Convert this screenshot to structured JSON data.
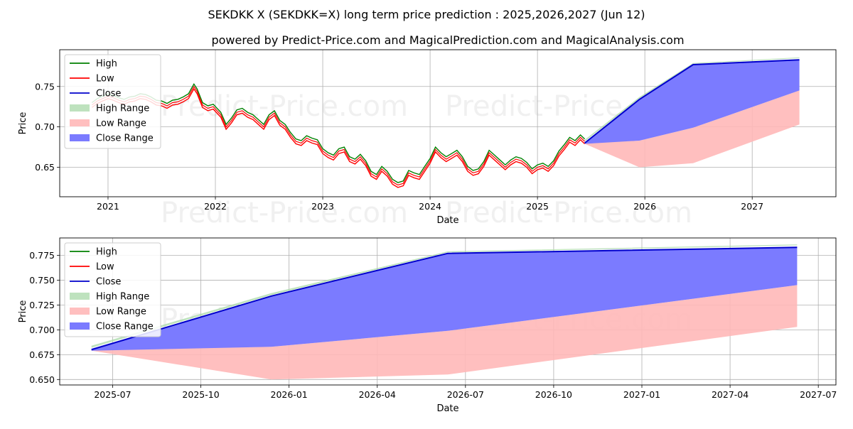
{
  "title": "SEKDKK X (SEKDKK=X) long term price prediction : 2025,2026,2027 (Jun 12)",
  "subtitle": "powered by Predict-Price.com and MagicalPrediction.com and MagicalAnalysis.com",
  "watermark": "Predict-Price.com",
  "colors": {
    "high": "#008000",
    "low": "#ff0000",
    "close": "#0000cc",
    "high_range": "#a8d8a8",
    "low_range": "#ffb8b8",
    "close_range": "#7b7bff"
  },
  "chart_data": [
    {
      "type": "line",
      "name": "history-and-forecast",
      "xlabel": "Date",
      "ylabel": "Price",
      "xlim": [
        2020.55,
        2027.78
      ],
      "ylim": [
        0.6135,
        0.7955
      ],
      "yticks": [
        0.65,
        0.7,
        0.75
      ],
      "ytick_labels": [
        "0.65",
        "0.70",
        "0.75"
      ],
      "xticks": [
        2021,
        2022,
        2023,
        2024,
        2025,
        2026,
        2027
      ],
      "xtick_labels": [
        "2021",
        "2022",
        "2023",
        "2024",
        "2025",
        "2026",
        "2027"
      ],
      "legend_position": "top-left",
      "legend": [
        "High",
        "Low",
        "Close",
        "High Range",
        "Low Range",
        "Close Range"
      ],
      "grid": true,
      "history_x": [
        2020.85,
        2020.9,
        2020.95,
        2021.0,
        2021.05,
        2021.1,
        2021.15,
        2021.2,
        2021.25,
        2021.3,
        2021.35,
        2021.4,
        2021.45,
        2021.5,
        2021.55,
        2021.6,
        2021.65,
        2021.7,
        2021.75,
        2021.8,
        2021.83,
        2021.88,
        2021.93,
        2021.98,
        2022.05,
        2022.1,
        2022.15,
        2022.2,
        2022.25,
        2022.3,
        2022.35,
        2022.4,
        2022.45,
        2022.5,
        2022.55,
        2022.6,
        2022.65,
        2022.7,
        2022.75,
        2022.8,
        2022.85,
        2022.9,
        2022.95,
        2023.0,
        2023.05,
        2023.1,
        2023.15,
        2023.2,
        2023.25,
        2023.3,
        2023.35,
        2023.4,
        2023.45,
        2023.5,
        2023.55,
        2023.6,
        2023.65,
        2023.7,
        2023.75,
        2023.8,
        2023.85,
        2023.9,
        2023.95,
        2024.0,
        2024.05,
        2024.1,
        2024.15,
        2024.2,
        2024.25,
        2024.3,
        2024.35,
        2024.4,
        2024.45,
        2024.5,
        2024.55,
        2024.6,
        2024.65,
        2024.7,
        2024.75,
        2024.8,
        2024.85,
        2024.9,
        2024.95,
        2025.0,
        2025.05,
        2025.1,
        2025.15,
        2025.2,
        2025.25,
        2025.3,
        2025.35,
        2025.4,
        2025.44
      ],
      "history_close": [
        0.727,
        0.732,
        0.735,
        0.738,
        0.736,
        0.733,
        0.731,
        0.734,
        0.735,
        0.738,
        0.737,
        0.734,
        0.73,
        0.729,
        0.726,
        0.73,
        0.731,
        0.734,
        0.738,
        0.75,
        0.744,
        0.727,
        0.723,
        0.725,
        0.715,
        0.7,
        0.708,
        0.718,
        0.72,
        0.715,
        0.712,
        0.706,
        0.7,
        0.712,
        0.717,
        0.705,
        0.7,
        0.69,
        0.682,
        0.68,
        0.686,
        0.683,
        0.681,
        0.67,
        0.665,
        0.662,
        0.67,
        0.672,
        0.66,
        0.657,
        0.663,
        0.655,
        0.642,
        0.638,
        0.648,
        0.642,
        0.632,
        0.628,
        0.63,
        0.643,
        0.64,
        0.638,
        0.648,
        0.658,
        0.672,
        0.665,
        0.66,
        0.664,
        0.668,
        0.66,
        0.648,
        0.643,
        0.645,
        0.654,
        0.668,
        0.662,
        0.656,
        0.65,
        0.656,
        0.66,
        0.658,
        0.653,
        0.645,
        0.65,
        0.652,
        0.648,
        0.655,
        0.667,
        0.675,
        0.684,
        0.68,
        0.687,
        0.682
      ],
      "history_high_offset": 0.003,
      "history_low_offset": -0.003,
      "forecast_x": [
        2025.44,
        2025.95,
        2026.45,
        2027.44
      ],
      "forecast_close": [
        0.68,
        0.734,
        0.777,
        0.783
      ],
      "forecast_high_range": [
        [
          0.682,
          0.684
        ],
        [
          0.735,
          0.737
        ],
        [
          0.778,
          0.779
        ],
        [
          0.785,
          0.786
        ]
      ],
      "forecast_low_range": [
        [
          0.679,
          0.68
        ],
        [
          0.65,
          0.683
        ],
        [
          0.655,
          0.699
        ],
        [
          0.703,
          0.745
        ]
      ],
      "forecast_close_range": [
        [
          0.679,
          0.681
        ],
        [
          0.683,
          0.734
        ],
        [
          0.699,
          0.777
        ],
        [
          0.745,
          0.783
        ]
      ]
    },
    {
      "type": "area",
      "name": "forecast-zoom",
      "xlabel": "Date",
      "ylabel": "Price",
      "xlim": [
        2025.35,
        2027.55
      ],
      "ylim": [
        0.6445,
        0.7925
      ],
      "yticks": [
        0.65,
        0.675,
        0.7,
        0.725,
        0.75,
        0.775
      ],
      "ytick_labels": [
        "0.650",
        "0.675",
        "0.700",
        "0.725",
        "0.750",
        "0.775"
      ],
      "xticks": [
        2025.5,
        2025.75,
        2026.0,
        2026.25,
        2026.5,
        2026.75,
        2027.0,
        2027.25,
        2027.5
      ],
      "xtick_labels": [
        "2025-07",
        "2025-10",
        "2026-01",
        "2026-04",
        "2026-07",
        "2026-10",
        "2027-01",
        "2027-04",
        "2027-07"
      ],
      "legend_position": "top-left",
      "legend": [
        "High",
        "Low",
        "Close",
        "High Range",
        "Low Range",
        "Close Range"
      ],
      "grid": true,
      "x": [
        2025.44,
        2025.95,
        2026.45,
        2027.44
      ],
      "close": [
        0.68,
        0.734,
        0.777,
        0.783
      ],
      "high_range": [
        [
          0.682,
          0.684
        ],
        [
          0.735,
          0.737
        ],
        [
          0.778,
          0.779
        ],
        [
          0.785,
          0.786
        ]
      ],
      "low_range": [
        [
          0.679,
          0.68
        ],
        [
          0.65,
          0.683
        ],
        [
          0.655,
          0.699
        ],
        [
          0.703,
          0.745
        ]
      ],
      "close_range": [
        [
          0.679,
          0.681
        ],
        [
          0.683,
          0.734
        ],
        [
          0.699,
          0.777
        ],
        [
          0.745,
          0.783
        ]
      ]
    }
  ]
}
